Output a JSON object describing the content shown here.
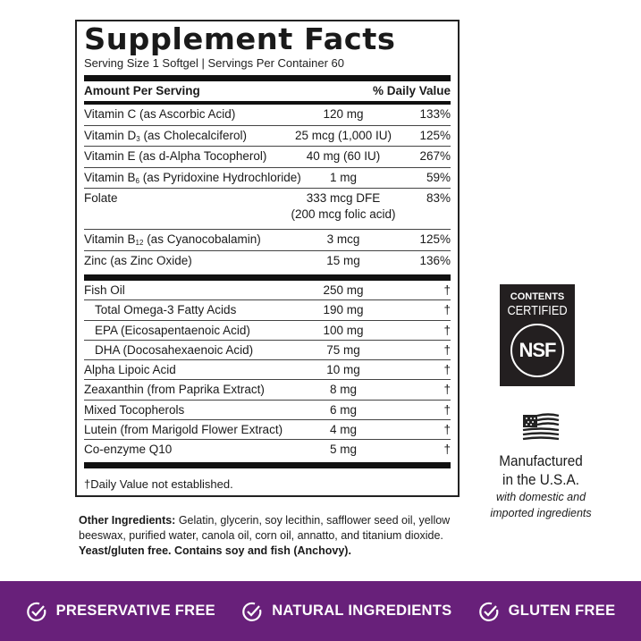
{
  "facts": {
    "title": "Supplement Facts",
    "serving": "Serving Size 1 Softgel  |  Servings Per Container 60",
    "header_amount": "Amount Per Serving",
    "header_dv": "% Daily Value",
    "vitamins": [
      {
        "name": "Vitamin C (as Ascorbic Acid)",
        "amount": "120 mg",
        "dv": "133%"
      },
      {
        "name": "Vitamin D",
        "sub": "3",
        "suffix": " (as Cholecalciferol)",
        "amount": "25 mcg (1,000 IU)",
        "dv": "125%"
      },
      {
        "name": "Vitamin E (as d-Alpha Tocopherol)",
        "amount": "40 mg (60 IU)",
        "dv": "267%"
      },
      {
        "name": "Vitamin B",
        "sub": "6",
        "suffix": " (as Pyridoxine Hydrochloride)",
        "amount": "1 mg",
        "dv": "59%"
      },
      {
        "name": "Folate",
        "amount": "333 mcg DFE",
        "amount2": "(200 mcg folic acid)",
        "dv": "83%"
      },
      {
        "name": "Vitamin B",
        "sub": "12",
        "suffix": " (as Cyanocobalamin)",
        "amount": "3 mcg",
        "dv": "125%"
      },
      {
        "name": "Zinc (as Zinc Oxide)",
        "amount": "15 mg",
        "dv": "136%"
      }
    ],
    "others": [
      {
        "name": "Fish Oil",
        "amount": "250 mg",
        "dv": "†"
      },
      {
        "name": "Total Omega-3 Fatty Acids",
        "amount": "190 mg",
        "dv": "†",
        "indent": true
      },
      {
        "name": "EPA (Eicosapentaenoic Acid)",
        "amount": "100 mg",
        "dv": "†",
        "indent": true
      },
      {
        "name": "DHA (Docosahexaenoic Acid)",
        "amount": "75 mg",
        "dv": "†",
        "indent": true
      },
      {
        "name": "Alpha Lipoic Acid",
        "amount": "10 mg",
        "dv": "†"
      },
      {
        "name": "Zeaxanthin (from Paprika Extract)",
        "amount": "8 mg",
        "dv": "†"
      },
      {
        "name": "Mixed Tocopherols",
        "amount": "6 mg",
        "dv": "†"
      },
      {
        "name": "Lutein (from Marigold Flower Extract)",
        "amount": "4 mg",
        "dv": "†"
      },
      {
        "name": "Co-enzyme Q10",
        "amount": "5 mg",
        "dv": "†"
      }
    ],
    "footnote": "†Daily Value not established."
  },
  "ingredients": {
    "label": "Other Ingredients:",
    "text": " Gelatin, glycerin, soy lecithin, safflower seed oil, yellow beeswax, purified water, canola oil, corn oil, annatto, and titanium dioxide. ",
    "bold_note": "Yeast/gluten free. Contains soy and fish (Anchovy)."
  },
  "nsf": {
    "line1": "CONTENTS",
    "line2": "CERTIFIED",
    "logo": "NSF"
  },
  "usa": {
    "line1": "Manufactured",
    "line2": "in the U.S.A.",
    "note1": "with domestic and",
    "note2": "imported ingredients",
    "icon": "us-flag-icon"
  },
  "badges": [
    "PRESERVATIVE FREE",
    "NATURAL INGREDIENTS",
    "GLUTEN FREE"
  ],
  "colors": {
    "banner": "#68207a",
    "nsf": "#231f20"
  }
}
